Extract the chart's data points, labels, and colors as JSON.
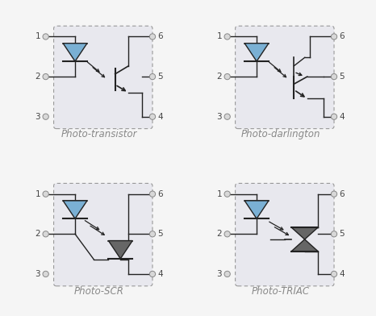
{
  "background_color": "#f5f5f5",
  "box_fill": "#e8e8ee",
  "box_edge": "#999999",
  "led_fill": "#7ab0d4",
  "led_stroke": "#444444",
  "dark_fill": "#666666",
  "line_color": "#222222",
  "pin_circle_facecolor": "#d8d8d8",
  "pin_circle_edge": "#888888",
  "pin_label_color": "#444444",
  "label_color": "#888888",
  "labels": [
    "Photo-transistor",
    "Photo-darlington",
    "Photo-SCR",
    "Photo-TRIAC"
  ],
  "label_fontsize": 8.5,
  "pin_fontsize": 7.5
}
